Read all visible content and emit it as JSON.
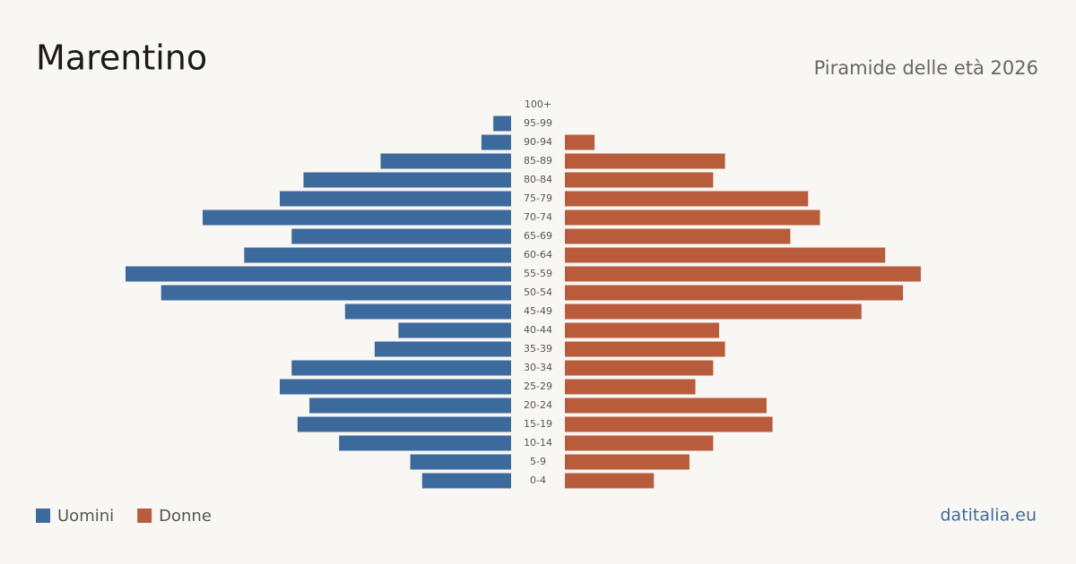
{
  "chart_data": {
    "type": "pyramid",
    "title": "Marentino",
    "subtitle": "Piramide delle età 2026",
    "source": "datitalia.eu",
    "categories": [
      "100+",
      "95-99",
      "90-94",
      "85-89",
      "80-84",
      "75-79",
      "70-74",
      "65-69",
      "60-64",
      "55-59",
      "50-54",
      "45-49",
      "40-44",
      "35-39",
      "30-34",
      "25-29",
      "20-24",
      "15-19",
      "10-14",
      "5-9",
      "0-4"
    ],
    "series": [
      {
        "name": "Uomini",
        "color": "#3d6a9c",
        "values": [
          0,
          3,
          5,
          22,
          35,
          39,
          52,
          37,
          45,
          65,
          59,
          28,
          19,
          23,
          37,
          39,
          34,
          36,
          29,
          17,
          15
        ]
      },
      {
        "name": "Donne",
        "color": "#b95c3c",
        "values": [
          0,
          0,
          5,
          27,
          25,
          41,
          43,
          38,
          54,
          60,
          57,
          50,
          26,
          27,
          25,
          22,
          34,
          35,
          25,
          21,
          15
        ]
      }
    ]
  }
}
